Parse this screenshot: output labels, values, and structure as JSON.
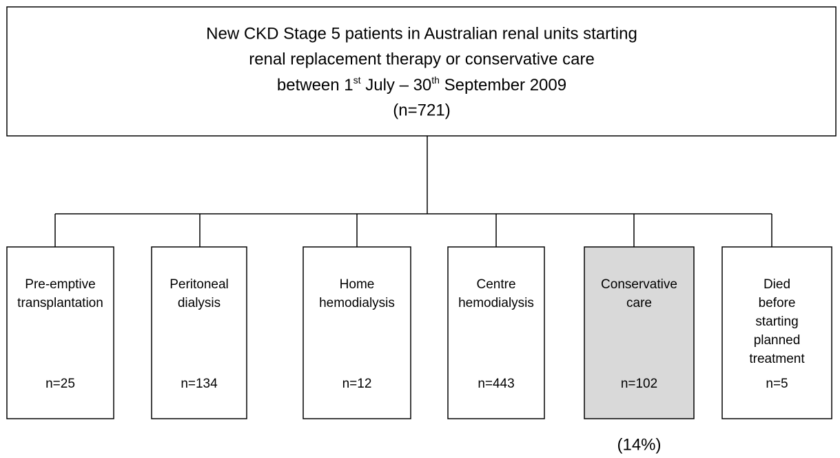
{
  "header": {
    "line1": "New CKD Stage 5 patients in Australian renal units starting",
    "line2": "renal replacement therapy or conservative care",
    "line3": [
      "between 1",
      "st",
      " July – 30",
      "th",
      " September 2009"
    ],
    "count": "(n=721)"
  },
  "nodes": [
    {
      "label": [
        "Pre-emptive",
        "transplantation"
      ],
      "count": "n=25"
    },
    {
      "label": [
        "Peritoneal",
        "dialysis"
      ],
      "count": "n=134"
    },
    {
      "label": [
        "Home",
        "hemodialysis"
      ],
      "count": "n=12"
    },
    {
      "label": [
        "Centre",
        "hemodialysis"
      ],
      "count": "n=443"
    },
    {
      "label": [
        "Conservative",
        "care"
      ],
      "count": "n=102",
      "note": "(14%)"
    },
    {
      "label": [
        "Died",
        "before",
        "starting",
        "planned",
        "treatment"
      ],
      "count": "n=5"
    }
  ]
}
